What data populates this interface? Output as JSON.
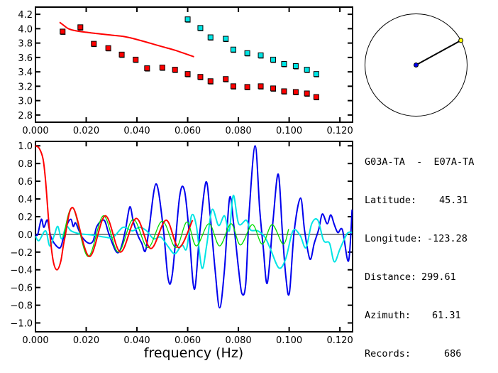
{
  "chart_data": [
    {
      "type": "scatter",
      "xlim": [
        0,
        0.125
      ],
      "ylim": [
        2.7,
        4.3
      ],
      "x_ticks": [
        "0.000",
        "0.020",
        "0.040",
        "0.060",
        "0.080",
        "0.100",
        "0.120"
      ],
      "y_ticks": [
        "2.8",
        "3.0",
        "3.2",
        "3.4",
        "3.6",
        "3.8",
        "4.0",
        "4.2"
      ],
      "series": [
        {
          "kind": "points",
          "color": "#ff0000",
          "x": [
            0.0107,
            0.0177,
            0.023,
            0.0287,
            0.034,
            0.0395,
            0.044,
            0.05,
            0.055,
            0.06,
            0.065,
            0.069,
            0.075,
            0.078,
            0.0835,
            0.0888,
            0.0937,
            0.098,
            0.1026,
            0.107,
            0.1107
          ],
          "y": [
            3.96,
            4.02,
            3.79,
            3.73,
            3.64,
            3.57,
            3.45,
            3.46,
            3.43,
            3.37,
            3.33,
            3.27,
            3.3,
            3.2,
            3.19,
            3.2,
            3.17,
            3.13,
            3.12,
            3.1,
            3.05
          ]
        },
        {
          "kind": "points",
          "color": "#00e5e5",
          "x": [
            0.06,
            0.065,
            0.069,
            0.075,
            0.078,
            0.0835,
            0.0888,
            0.0937,
            0.098,
            0.1026,
            0.107,
            0.1107
          ],
          "y": [
            4.13,
            4.01,
            3.88,
            3.86,
            3.71,
            3.66,
            3.63,
            3.57,
            3.51,
            3.48,
            3.43,
            3.37
          ]
        },
        {
          "kind": "line",
          "color": "#ff0000",
          "x": [
            0.0095,
            0.011,
            0.013,
            0.016,
            0.02,
            0.025,
            0.03,
            0.035,
            0.04,
            0.045,
            0.05,
            0.055,
            0.06,
            0.0625
          ],
          "y": [
            4.09,
            4.05,
            4.0,
            3.97,
            3.95,
            3.93,
            3.91,
            3.89,
            3.85,
            3.8,
            3.75,
            3.7,
            3.64,
            3.61
          ]
        }
      ]
    },
    {
      "type": "line",
      "xlabel": "frequency (Hz)",
      "xlim": [
        0,
        0.125
      ],
      "ylim": [
        -1.1,
        1.05
      ],
      "x_ticks": [
        "0.000",
        "0.020",
        "0.040",
        "0.060",
        "0.080",
        "0.100",
        "0.120"
      ],
      "y_ticks": [
        "-1.0",
        "-0.8",
        "-0.6",
        "-0.4",
        "-0.2",
        "0.0",
        "0.2",
        "0.4",
        "0.6",
        "0.8",
        "1.0"
      ],
      "series": [
        {
          "color": "#0000ee",
          "x": [
            0,
            0.0009,
            0.0023,
            0.0033,
            0.0047,
            0.006,
            0.0079,
            0.0098,
            0.011,
            0.0126,
            0.014,
            0.0149,
            0.0158,
            0.0172,
            0.0186,
            0.021,
            0.0228,
            0.0242,
            0.027,
            0.0289,
            0.0317,
            0.0335,
            0.0354,
            0.0372,
            0.0386,
            0.0405,
            0.0419,
            0.0433,
            0.0447,
            0.0475,
            0.0503,
            0.0523,
            0.054,
            0.0568,
            0.0587,
            0.0605,
            0.0626,
            0.0647,
            0.0672,
            0.0689,
            0.0708,
            0.0726,
            0.0745,
            0.0765,
            0.0782,
            0.0801,
            0.0814,
            0.0829,
            0.0843,
            0.0866,
            0.0884,
            0.0898,
            0.0914,
            0.0936,
            0.0957,
            0.0973,
            0.0987,
            0.1001,
            0.102,
            0.1045,
            0.1061,
            0.1082,
            0.1099,
            0.1117,
            0.1131,
            0.115,
            0.1164,
            0.1178,
            0.1192,
            0.121,
            0.1234,
            0.1248
          ],
          "y": [
            0,
            0,
            0.17,
            0.08,
            0.16,
            -0.02,
            -0.12,
            -0.15,
            -0.04,
            0.12,
            0.17,
            0.09,
            0.13,
            0.04,
            -0.04,
            -0.1,
            -0.07,
            0.09,
            0.16,
            0.01,
            -0.19,
            -0.17,
            0.04,
            0.31,
            0.14,
            -0.02,
            -0.1,
            -0.19,
            0.04,
            0.57,
            0.09,
            -0.5,
            -0.44,
            0.42,
            0.5,
            0.05,
            -0.62,
            0.0,
            0.59,
            0.21,
            -0.4,
            -0.83,
            -0.4,
            0.41,
            0.1,
            -0.4,
            -0.67,
            -0.55,
            0.28,
            1.0,
            0.28,
            -0.15,
            -0.55,
            0.14,
            0.68,
            0.04,
            -0.48,
            -0.66,
            0.04,
            0.41,
            0.04,
            -0.28,
            -0.1,
            0.06,
            0.23,
            0.12,
            0.22,
            0.11,
            0.02,
            0.05,
            -0.3,
            0.28
          ]
        },
        {
          "color": "#00e5e5",
          "x": [
            0,
            0.0014,
            0.004,
            0.0056,
            0.0074,
            0.0088,
            0.0103,
            0.0121,
            0.014,
            0.0168,
            0.0196,
            0.0233,
            0.027,
            0.0307,
            0.0345,
            0.0382,
            0.041,
            0.0438,
            0.0466,
            0.0494,
            0.0521,
            0.0549,
            0.0577,
            0.0596,
            0.0615,
            0.0634,
            0.0656,
            0.0675,
            0.0696,
            0.0722,
            0.0745,
            0.0764,
            0.078,
            0.0801,
            0.0831,
            0.0848,
            0.0876,
            0.0904,
            0.0927,
            0.096,
            0.0987,
            0.1015,
            0.1043,
            0.1066,
            0.1089,
            0.1113,
            0.1136,
            0.1159,
            0.1178,
            0.1201,
            0.1229,
            0.1248
          ],
          "y": [
            -0.02,
            -0.07,
            0.04,
            -0.13,
            -0.01,
            0.09,
            -0.05,
            0.09,
            0.04,
            0.01,
            0.0,
            -0.01,
            -0.03,
            -0.03,
            0.08,
            0.04,
            0.08,
            0.04,
            -0.05,
            -0.03,
            -0.13,
            -0.22,
            -0.12,
            -0.16,
            0.21,
            0.1,
            -0.38,
            -0.12,
            0.28,
            0.1,
            0.21,
            0.04,
            0.44,
            0.12,
            0.16,
            0.05,
            0.04,
            -0.03,
            -0.17,
            -0.38,
            -0.27,
            0.04,
            -0.01,
            -0.15,
            0.12,
            0.16,
            -0.07,
            -0.1,
            -0.31,
            -0.16,
            0.01,
            0.02
          ]
        },
        {
          "color": "#00dd00",
          "x": [
            0.011,
            0.0147,
            0.0207,
            0.0268,
            0.0326,
            0.0385,
            0.0443,
            0.05,
            0.0553,
            0.0597,
            0.0634,
            0.0684,
            0.0726,
            0.0771,
            0.0808,
            0.0855,
            0.0894,
            0.0933,
            0.0976,
            0.0998
          ],
          "y": [
            -0.03,
            0.3,
            -0.25,
            0.21,
            -0.2,
            0.17,
            -0.15,
            0.15,
            -0.15,
            0.14,
            -0.13,
            0.12,
            -0.13,
            0.12,
            -0.12,
            0.11,
            -0.11,
            0.11,
            -0.11,
            0.06
          ]
        },
        {
          "color": "#ff0000",
          "x": [
            0,
            0.0015,
            0.003,
            0.004,
            0.0055,
            0.007,
            0.0085,
            0.01,
            0.0115,
            0.0148,
            0.0212,
            0.0275,
            0.0335,
            0.0397,
            0.0455,
            0.0515,
            0.0565,
            0.0619
          ],
          "y": [
            1.0,
            0.97,
            0.85,
            0.6,
            0.05,
            -0.3,
            -0.4,
            -0.3,
            -0.05,
            0.3,
            -0.25,
            0.21,
            -0.2,
            0.18,
            -0.16,
            0.16,
            -0.15,
            0.16
          ]
        }
      ]
    }
  ],
  "map": {
    "azimuth_deg": 61.31,
    "center_color": "#0000ee",
    "station_color": "#ffff00"
  },
  "info": {
    "pair": "G03A-TA  -  E07A-TA",
    "latitude_label": "Latitude:",
    "latitude": "45.31",
    "longitude_label": "Longitude:",
    "longitude": "-123.28",
    "distance_label": "Distance:",
    "distance": "299.61",
    "azimuth_label": "Azimuth:",
    "azimuth": "61.31",
    "records_label": "Records:",
    "records": "686"
  }
}
